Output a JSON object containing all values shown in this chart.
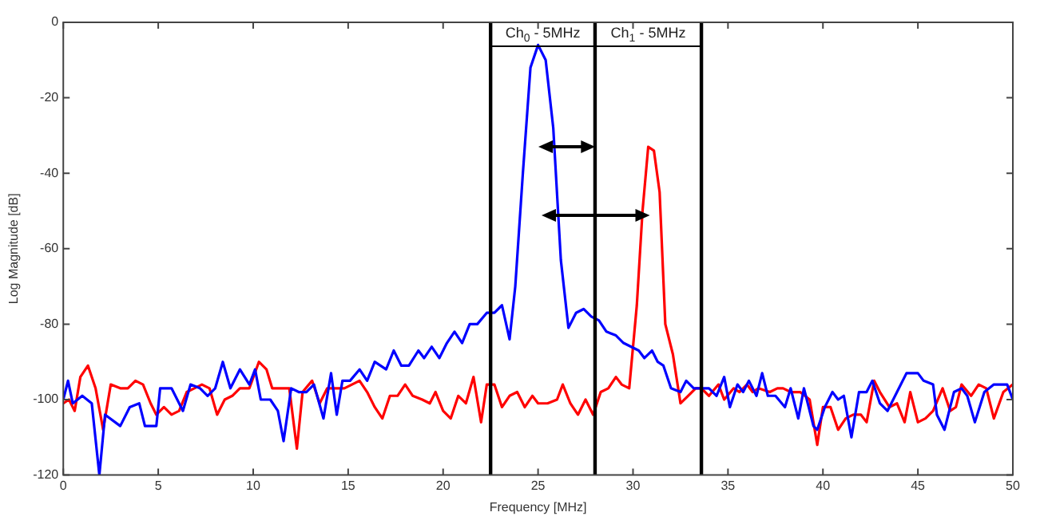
{
  "chart_data": {
    "type": "line",
    "xlabel": "Frequency [MHz]",
    "ylabel": "Log Magnitude [dB]",
    "xlim": [
      0,
      50
    ],
    "xticks": [
      0,
      5,
      10,
      15,
      20,
      25,
      30,
      35,
      40,
      45,
      50
    ],
    "ylim": [
      -120,
      0
    ],
    "yticks": [
      -120,
      -100,
      -80,
      -60,
      -40,
      -20,
      0
    ],
    "grid": false,
    "legend": false,
    "marker": "none",
    "line_style": "solid",
    "ref_lines": [
      {
        "axis": "x",
        "value": 22.5,
        "color": "#000000",
        "label": "Ch$_{0}$ - 5MHz"
      },
      {
        "axis": "x",
        "value": 28,
        "color": "#000000",
        "label": "Ch$_{1}$ - 5MHz"
      },
      {
        "axis": "x",
        "value": 33.6,
        "color": "#000000"
      }
    ],
    "series": [
      {
        "color": "#0000ff",
        "x": [
          0,
          0.25,
          0.5,
          1,
          1.5,
          1.9,
          2.2,
          3,
          3.5,
          4,
          4.3,
          4.9,
          5.1,
          5.7,
          6.3,
          6.7,
          7.2,
          7.6,
          8,
          8.4,
          8.8,
          9.3,
          9.8,
          10.1,
          10.4,
          10.9,
          11.3,
          11.6,
          12,
          12.4,
          12.8,
          13.2,
          13.7,
          14.1,
          14.4,
          14.7,
          15.1,
          15.6,
          16,
          16.4,
          17,
          17.4,
          17.8,
          18.2,
          18.7,
          19,
          19.4,
          19.8,
          20.2,
          20.6,
          21,
          21.4,
          21.8,
          22.3,
          22.7,
          23.1,
          23.5,
          23.8,
          24.2,
          24.6,
          25,
          25.4,
          25.8,
          26.2,
          26.6,
          27,
          27.4,
          27.8,
          28.2,
          28.6,
          29.1,
          29.5,
          29.9,
          30.3,
          30.6,
          31,
          31.3,
          31.6,
          32,
          32.5,
          32.8,
          33.2,
          33.6,
          34,
          34.4,
          34.8,
          35.1,
          35.5,
          35.8,
          36.1,
          36.5,
          36.8,
          37.1,
          37.5,
          38,
          38.3,
          38.7,
          39,
          39.5,
          39.7,
          40.1,
          40.5,
          40.8,
          41.1,
          41.5,
          41.9,
          42.3,
          42.6,
          43,
          43.4,
          43.9,
          44.4,
          45,
          45.3,
          45.8,
          46,
          46.4,
          46.9,
          47.3,
          47.6,
          48,
          48.5,
          49,
          49.7,
          50
        ],
        "values": [
          -100,
          -95,
          -101,
          -99,
          -101,
          -120,
          -104,
          -107,
          -102,
          -101,
          -107,
          -107,
          -97,
          -97,
          -103,
          -96,
          -97,
          -99,
          -97,
          -90,
          -97,
          -92,
          -96,
          -92,
          -100,
          -100,
          -103,
          -111,
          -97,
          -98,
          -98,
          -96,
          -105,
          -93,
          -104,
          -95,
          -95,
          -92,
          -95,
          -90,
          -92,
          -87,
          -91,
          -91,
          -87,
          -89,
          -86,
          -89,
          -85,
          -82,
          -85,
          -80,
          -80,
          -77,
          -77,
          -75,
          -84,
          -70,
          -40,
          -12,
          -6,
          -10,
          -28,
          -63,
          -81,
          -77,
          -76,
          -78,
          -79,
          -82,
          -83,
          -85,
          -86,
          -87,
          -89,
          -87,
          -90,
          -91,
          -97,
          -98,
          -95,
          -97,
          -97,
          -97,
          -99,
          -94,
          -102,
          -96,
          -98,
          -95,
          -99,
          -93,
          -99,
          -99,
          -102,
          -97,
          -105,
          -97,
          -107,
          -108,
          -102,
          -98,
          -100,
          -99,
          -110,
          -98,
          -98,
          -95,
          -101,
          -103,
          -98,
          -93,
          -93,
          -95,
          -96,
          -104,
          -108,
          -98,
          -97,
          -99,
          -106,
          -98,
          -96,
          -96,
          -100
        ]
      },
      {
        "color": "#ff0000",
        "x": [
          0,
          0.3,
          0.6,
          0.9,
          1.3,
          1.7,
          2.1,
          2.5,
          3,
          3.4,
          3.8,
          4.2,
          4.6,
          4.9,
          5.3,
          5.7,
          6.1,
          6.5,
          6.9,
          7.3,
          7.7,
          8.1,
          8.5,
          8.9,
          9.3,
          9.8,
          10.3,
          10.7,
          11,
          11.6,
          11.9,
          12.3,
          12.6,
          13.1,
          13.5,
          13.9,
          14.3,
          14.8,
          15.2,
          15.6,
          16,
          16.4,
          16.8,
          17.2,
          17.6,
          18,
          18.4,
          18.9,
          19.3,
          19.6,
          20,
          20.4,
          20.8,
          21.2,
          21.6,
          22,
          22.3,
          22.7,
          23.1,
          23.5,
          23.9,
          24.3,
          24.7,
          25,
          25.5,
          26,
          26.3,
          26.7,
          27.1,
          27.5,
          27.9,
          28.3,
          28.7,
          29.1,
          29.4,
          29.8,
          30.2,
          30.5,
          30.8,
          31.1,
          31.4,
          31.7,
          32.1,
          32.5,
          32.9,
          33.3,
          33.6,
          34,
          34.5,
          34.8,
          35.3,
          35.6,
          36,
          36.3,
          36.6,
          37.2,
          37.6,
          37.9,
          38.3,
          38.8,
          39.3,
          39.7,
          40,
          40.4,
          40.8,
          41.2,
          41.6,
          42,
          42.3,
          42.7,
          43,
          43.5,
          43.9,
          44.3,
          44.6,
          45,
          45.4,
          45.8,
          46.3,
          46.7,
          47,
          47.3,
          47.8,
          48.2,
          48.6,
          49,
          49.5,
          50
        ],
        "values": [
          -101,
          -100,
          -103,
          -94,
          -91,
          -97,
          -108,
          -96,
          -97,
          -97,
          -95,
          -96,
          -101,
          -104,
          -102,
          -104,
          -103,
          -98,
          -97,
          -96,
          -97,
          -104,
          -100,
          -99,
          -97,
          -97,
          -90,
          -92,
          -97,
          -97,
          -97,
          -113,
          -98,
          -95,
          -101,
          -97,
          -97,
          -97,
          -96,
          -95,
          -98,
          -102,
          -105,
          -99,
          -99,
          -96,
          -99,
          -100,
          -101,
          -98,
          -103,
          -105,
          -99,
          -101,
          -94,
          -106,
          -96,
          -96,
          -102,
          -99,
          -98,
          -102,
          -99,
          -101,
          -101,
          -100,
          -96,
          -101,
          -104,
          -100,
          -104,
          -98,
          -97,
          -94,
          -96,
          -97,
          -75,
          -50,
          -33,
          -34,
          -45,
          -80,
          -88,
          -101,
          -99,
          -97,
          -97,
          -99,
          -96,
          -100,
          -97,
          -98,
          -96,
          -98,
          -97,
          -98,
          -97,
          -97,
          -98,
          -98,
          -100,
          -112,
          -102,
          -102,
          -108,
          -105,
          -104,
          -104,
          -106,
          -95,
          -98,
          -102,
          -101,
          -106,
          -98,
          -106,
          -105,
          -103,
          -97,
          -103,
          -102,
          -96,
          -99,
          -96,
          -97,
          -105,
          -98,
          -96
        ]
      }
    ]
  }
}
